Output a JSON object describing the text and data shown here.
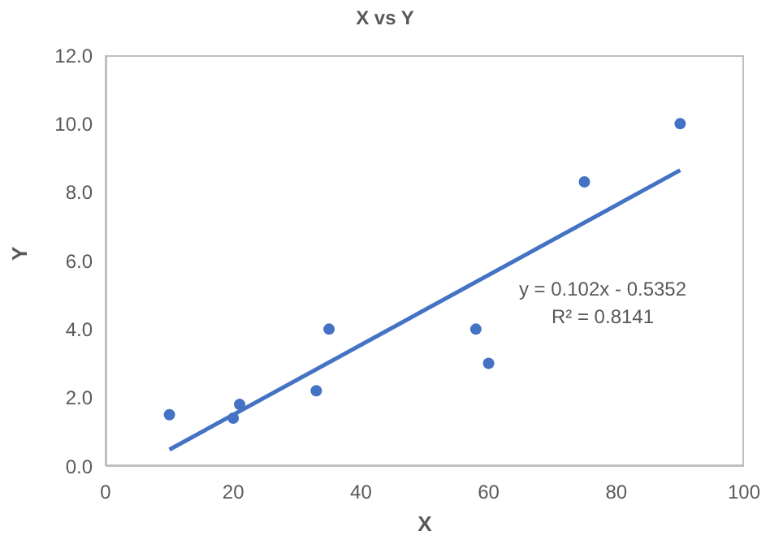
{
  "chart_data": {
    "type": "scatter",
    "title": "X vs Y",
    "xlabel": "X",
    "ylabel": "Y",
    "x": [
      10,
      20,
      21,
      33,
      35,
      58,
      60,
      75,
      90
    ],
    "series": [
      {
        "color": "#4472c4",
        "values": [
          1.5,
          1.4,
          1.8,
          2.2,
          4.0,
          4.0,
          3.0,
          8.3,
          10.0
        ]
      },
      {
        "type": "line",
        "marker": "none",
        "color": "#4472c4",
        "x": [
          10,
          90
        ],
        "values": [
          0.48,
          8.64
        ]
      }
    ],
    "xlim": [
      0,
      100
    ],
    "xticks": [
      0,
      20,
      40,
      60,
      80,
      100
    ],
    "ylim": [
      0,
      12
    ],
    "yticks": [
      {
        "value": 0,
        "label": "0.0"
      },
      {
        "value": 2,
        "label": "2.0"
      },
      {
        "value": 4,
        "label": "4.0"
      },
      {
        "value": 6,
        "label": "6.0"
      },
      {
        "value": 8,
        "label": "8.0"
      },
      {
        "value": 10,
        "label": "10.0"
      },
      {
        "value": 12,
        "label": "12.0"
      }
    ],
    "marker": "circle",
    "line_style": "solid",
    "grid": false,
    "legend": false,
    "annotations": [
      "y = 0.102x - 0.5352",
      "R² = 0.8141"
    ]
  }
}
